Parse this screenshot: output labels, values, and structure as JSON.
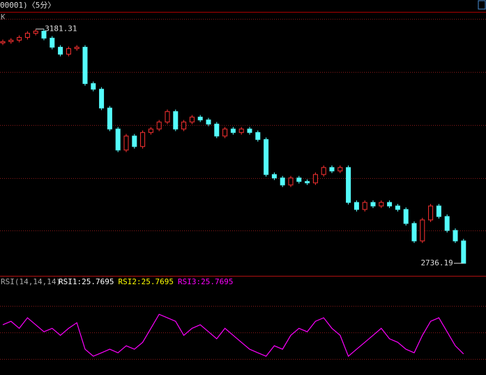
{
  "header": {
    "title": "00001)〈5分〉"
  },
  "chart_data": [
    {
      "type": "candlestick",
      "title": "K",
      "open": [
        3155.0,
        3157.4,
        3160.1,
        3165.4,
        3173.3,
        3177.3,
        3164.0,
        3146.8,
        3133.5,
        3144.1,
        3146.8,
        3077.7,
        3067.0,
        3031.2,
        2991.3,
        2951.4,
        2978.0,
        2958.1,
        2984.7,
        2991.3,
        3004.6,
        3024.5,
        2991.3,
        3004.6,
        3014.0,
        3008.6,
        3000.7,
        2978.0,
        2991.3,
        2984.7,
        2991.3,
        2984.7,
        2971.4,
        2904.9,
        2898.3,
        2885.0,
        2898.3,
        2891.7,
        2889.0,
        2904.9,
        2918.2,
        2911.6,
        2918.2,
        2851.8,
        2838.5,
        2851.8,
        2845.1,
        2851.8,
        2845.1,
        2838.5,
        2811.9,
        2778.7,
        2818.6,
        2845.1,
        2825.1,
        2798.6,
        2778.7
      ],
      "high": [
        3161.4,
        3164.1,
        3169.4,
        3177.3,
        3181.31,
        3181.3,
        3168.0,
        3150.8,
        3148.1,
        3150.8,
        3150.8,
        3081.7,
        3071.0,
        3035.2,
        2995.3,
        2982.0,
        2982.0,
        2988.7,
        2995.3,
        3008.6,
        3028.5,
        3028.5,
        3008.6,
        3018.0,
        3018.0,
        3012.6,
        3004.7,
        2995.3,
        2995.3,
        2995.3,
        2995.3,
        2988.7,
        2975.4,
        2908.9,
        2902.3,
        2902.3,
        2902.3,
        2895.7,
        2908.9,
        2922.2,
        2922.2,
        2922.2,
        2922.2,
        2855.8,
        2855.8,
        2855.8,
        2855.8,
        2855.8,
        2849.1,
        2842.5,
        2815.9,
        2822.6,
        2849.1,
        2849.1,
        2829.1,
        2802.6,
        2782.7
      ],
      "low": [
        3151.0,
        3153.4,
        3156.1,
        3161.4,
        3169.3,
        3160.0,
        3142.8,
        3129.5,
        3129.5,
        3140.1,
        3073.7,
        3063.0,
        3027.2,
        2987.3,
        2947.4,
        2947.4,
        2954.1,
        2954.1,
        2980.7,
        2987.3,
        3000.6,
        2987.3,
        2987.3,
        3000.6,
        3004.6,
        2996.7,
        2974.0,
        2974.0,
        2980.7,
        2980.7,
        2980.7,
        2967.4,
        2900.9,
        2894.3,
        2881.0,
        2881.0,
        2887.7,
        2885.0,
        2885.0,
        2900.9,
        2907.6,
        2907.6,
        2847.8,
        2834.5,
        2834.5,
        2841.1,
        2841.1,
        2841.1,
        2834.5,
        2807.9,
        2774.7,
        2774.7,
        2814.6,
        2821.1,
        2794.6,
        2774.7,
        2736.19
      ],
      "close": [
        3157.4,
        3160.1,
        3165.4,
        3173.3,
        3177.3,
        3164.0,
        3146.8,
        3133.5,
        3144.1,
        3146.8,
        3077.7,
        3067.0,
        3031.2,
        2991.3,
        2951.4,
        2978.0,
        2958.1,
        2984.7,
        2991.3,
        3004.6,
        3024.5,
        2991.3,
        3004.6,
        3014.0,
        3008.6,
        3000.7,
        2978.0,
        2991.3,
        2984.7,
        2991.3,
        2984.7,
        2971.4,
        2904.9,
        2898.3,
        2885.0,
        2898.3,
        2891.7,
        2889.0,
        2904.9,
        2918.2,
        2911.6,
        2918.2,
        2851.8,
        2838.5,
        2851.8,
        2845.1,
        2851.8,
        2845.1,
        2838.5,
        2811.9,
        2778.7,
        2818.6,
        2845.1,
        2825.1,
        2798.6,
        2778.7,
        2736.19
      ],
      "up_color": "#ff3232",
      "down_color": "#54fcfc",
      "ylim": [
        2715,
        3210
      ]
    },
    {
      "type": "line",
      "label": "RSI(14,14,14)",
      "legend": [
        {
          "name": "RSI1:",
          "value": 25.7695,
          "color": "#ffffff"
        },
        {
          "name": "RSI2:",
          "value": 25.7695,
          "color": "#ffff00"
        }
      ],
      "series": [
        {
          "name": "RSI3:",
          "color": "#ff00ff",
          "values": [
            58.7,
            62.6,
            54.7,
            66.6,
            58.7,
            50.8,
            54.7,
            46.8,
            54.7,
            61.0,
            31.1,
            23.2,
            27.1,
            31.1,
            27.1,
            35.0,
            31.1,
            38.9,
            54.7,
            70.5,
            66.6,
            62.6,
            46.8,
            54.7,
            58.7,
            50.8,
            42.9,
            54.7,
            46.8,
            38.9,
            31.1,
            27.1,
            23.2,
            35.0,
            31.1,
            46.8,
            54.7,
            50.8,
            62.6,
            66.6,
            54.7,
            46.8,
            23.2,
            31.1,
            38.9,
            46.8,
            54.7,
            42.9,
            38.9,
            31.1,
            27.1,
            46.8,
            62.6,
            66.6,
            50.8,
            35.0,
            25.7695
          ]
        }
      ],
      "ylim": [
        2,
        110
      ]
    }
  ]
}
